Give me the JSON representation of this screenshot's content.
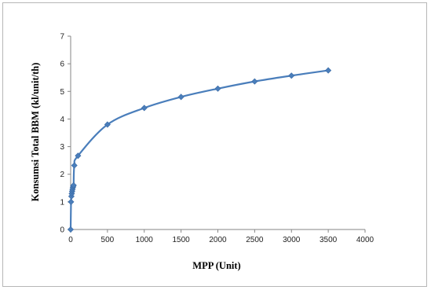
{
  "chart_data": {
    "type": "line",
    "title": "",
    "xlabel": "MPP (Unit)",
    "ylabel": "Konsumsi Total BBM (kl/unit/th)",
    "xlim": [
      0,
      4000
    ],
    "ylim": [
      0,
      7
    ],
    "x_ticks": [
      0,
      500,
      1000,
      1500,
      2000,
      2500,
      3000,
      3500,
      4000
    ],
    "y_ticks": [
      0,
      1,
      2,
      3,
      4,
      5,
      6,
      7
    ],
    "grid": false,
    "legend": "none",
    "series": [
      {
        "color": "#4a7ebb",
        "marker": "diamond",
        "points": [
          [
            0,
            0
          ],
          [
            5,
            1.0
          ],
          [
            10,
            1.2
          ],
          [
            15,
            1.3
          ],
          [
            20,
            1.38
          ],
          [
            25,
            1.45
          ],
          [
            30,
            1.52
          ],
          [
            35,
            1.57
          ],
          [
            40,
            1.6
          ],
          [
            50,
            2.32
          ],
          [
            100,
            2.67
          ],
          [
            500,
            3.8
          ],
          [
            1000,
            4.4
          ],
          [
            1500,
            4.8
          ],
          [
            2000,
            5.1
          ],
          [
            2500,
            5.36
          ],
          [
            3000,
            5.57
          ],
          [
            3500,
            5.76
          ]
        ]
      }
    ]
  }
}
